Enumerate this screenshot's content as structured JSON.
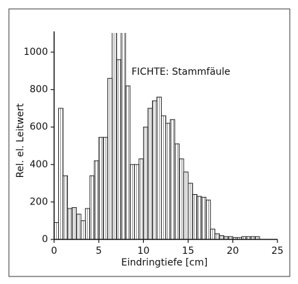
{
  "chart_data": {
    "type": "histogram",
    "annotation": "FICHTE: Stammfäule",
    "xlabel": "Eindringtiefe  [cm]",
    "ylabel": "Rel. el. Leitwert",
    "bins": [
      0,
      0.5,
      1,
      1.5,
      2,
      2.5,
      3,
      3.5,
      4,
      4.5,
      5,
      5.5,
      6,
      6.5,
      7,
      7.5,
      8,
      8.5,
      9,
      9.5,
      10,
      10.5,
      11,
      11.5,
      12,
      12.5,
      13,
      13.5,
      14,
      14.5,
      15,
      15.5,
      16,
      16.5,
      17,
      17.5,
      18,
      18.5,
      19,
      19.5,
      20,
      20.5,
      21,
      21.5,
      22,
      22.5,
      23
    ],
    "values": [
      90,
      700,
      340,
      165,
      170,
      135,
      100,
      165,
      340,
      420,
      545,
      545,
      860,
      1150,
      960,
      1150,
      820,
      400,
      400,
      430,
      600,
      700,
      740,
      760,
      660,
      620,
      640,
      510,
      430,
      360,
      300,
      240,
      230,
      225,
      210,
      55,
      30,
      20,
      15,
      15,
      10,
      10,
      15,
      15,
      15,
      15
    ],
    "color": "#222222",
    "xlim": [
      0,
      25
    ],
    "xticks": [
      0,
      5,
      10,
      15,
      20,
      25
    ],
    "ylim": [
      0,
      1100
    ],
    "yticks": [
      0,
      200,
      400,
      600,
      800,
      1000
    ]
  }
}
